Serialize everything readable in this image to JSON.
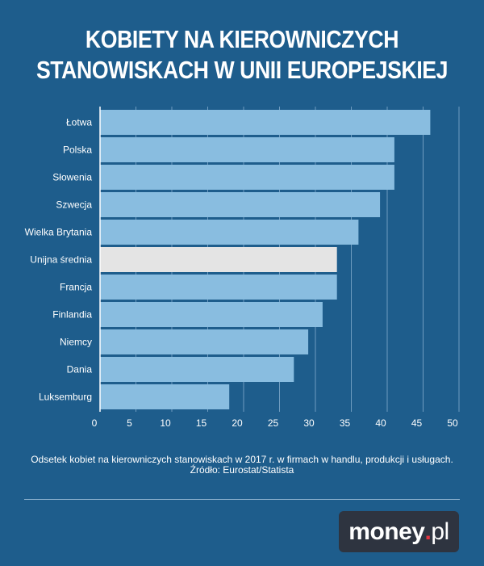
{
  "title": {
    "line1": "KOBIETY NA KIEROWNICZYCH",
    "line2": "STANOWISKACH W UNII EUROPEJSKIEJ"
  },
  "chart_data": {
    "type": "bar",
    "orientation": "horizontal",
    "categories": [
      "Łotwa",
      "Polska",
      "Słowenia",
      "Szwecja",
      "Wielka Brytania",
      "Unijna średnia",
      "Francja",
      "Finlandia",
      "Niemcy",
      "Dania",
      "Luksemburg"
    ],
    "values": [
      46,
      41,
      41,
      39,
      36,
      33,
      33,
      31,
      29,
      27,
      18
    ],
    "highlight_category": "Unijna średnia",
    "xlim": [
      0,
      50
    ],
    "xticks": [
      0,
      5,
      10,
      15,
      20,
      25,
      30,
      35,
      40,
      45,
      50
    ],
    "grid": true,
    "colors": {
      "bar": "#89bde0",
      "highlight": "#e4e4e4",
      "grid": "#6f9cc0",
      "axis": "#ffffff"
    }
  },
  "caption": {
    "line1": "Odsetek kobiet na kierowniczych stanowiskach w 2017 r. w firmach w handlu, produkcji i usługach.",
    "line2": "Źródło: Eurostat/Statista"
  },
  "logo": {
    "main": "money",
    "dot": ".",
    "suffix": "pl"
  },
  "colors": {
    "background": "#1e5d8c",
    "logo_bg": "#2e3440",
    "logo_dot": "#e2343f"
  }
}
